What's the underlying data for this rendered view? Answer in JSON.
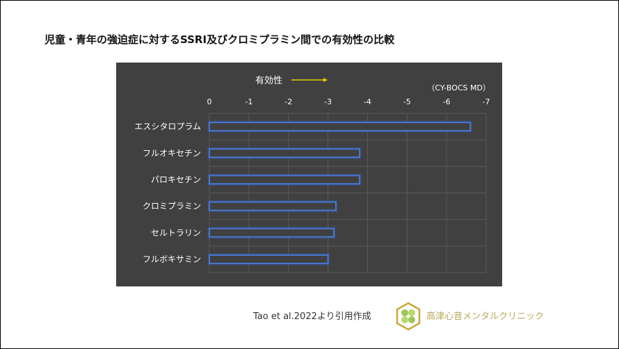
{
  "title": "児童・青年の強迫症に対するSSRI及びクロミプラミン間での有効性の比較",
  "chart_data": {
    "type": "bar",
    "orientation": "horizontal",
    "annotation": "有効性",
    "unit_label": "（CY-BOCS MD）",
    "categories": [
      "エスシタロプラム",
      "フルオキセチン",
      "パロキセチン",
      "クロミプラミン",
      "セルトラリン",
      "フルボキサミン"
    ],
    "values": [
      -6.6,
      -3.8,
      -3.8,
      -3.2,
      -3.15,
      -3.0
    ],
    "xlim": [
      0,
      -7
    ],
    "ticks": [
      "0",
      "-1",
      "-2",
      "-3",
      "-4",
      "-5",
      "-6",
      "-7"
    ],
    "grid": true,
    "colors": {
      "background": "#404040",
      "bar_outline": "#4a78d0",
      "arrow": "#e0d000",
      "grid": "#5a5a5a",
      "text": "#ffffff"
    }
  },
  "footer": {
    "citation": "Tao et al.2022より引用作成",
    "clinic_name": "高津心音メンタルクリニック"
  }
}
